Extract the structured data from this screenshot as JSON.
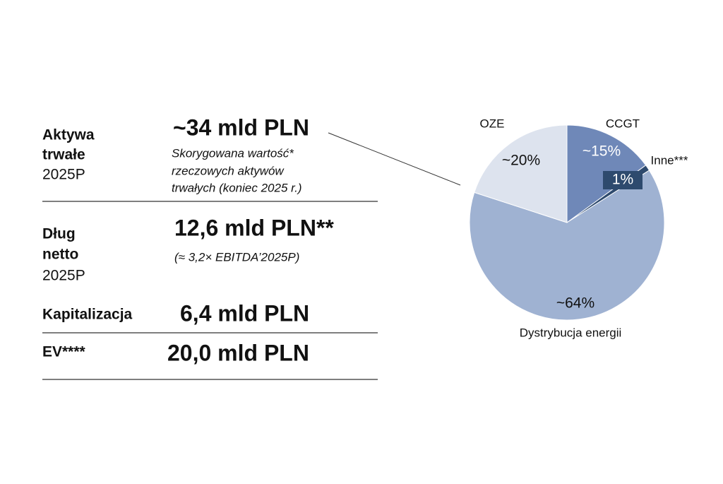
{
  "metrics": [
    {
      "label": [
        "Aktywa",
        "trwałe"
      ],
      "period": "2025P",
      "value": "~34 mld PLN",
      "note": [
        "Skorygowana wartość*",
        "rzeczowych aktywów",
        "trwałych (koniec 2025 r.)"
      ]
    },
    {
      "label": [
        "Dług",
        "netto"
      ],
      "period": "2025P",
      "value": "12,6 mld PLN**",
      "note": [
        "(≈ 3,2× EBITDA’2025P)"
      ]
    },
    {
      "label": [
        "Kapitalizacja"
      ],
      "value": "6,4 mld PLN"
    },
    {
      "label": [
        "EV****"
      ],
      "value": "20,0 mld PLN"
    }
  ],
  "chart_data": {
    "type": "pie",
    "categories": [
      "CCGT",
      "Inne***",
      "Dystrybucja energii",
      "OZE"
    ],
    "values": [
      15,
      1,
      64,
      20
    ],
    "value_labels": [
      "~15%",
      "1%",
      "~64%",
      "~20%"
    ],
    "colors": [
      "#6f88b8",
      "#2e4a6e",
      "#9fb2d2",
      "#dde3ee"
    ]
  }
}
